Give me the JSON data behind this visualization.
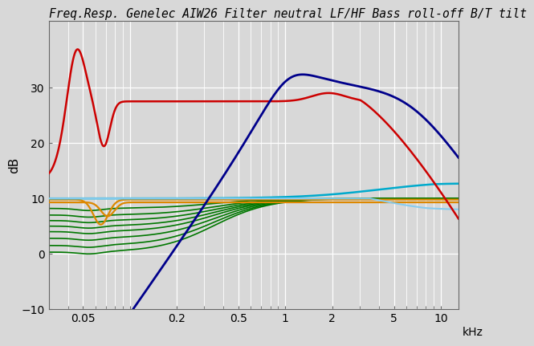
{
  "title": "Freq.Resp. Genelec AIW26 Filter neutral LF/HF Bass roll-off B/T tilt",
  "ylabel": "dB",
  "xlabel": "kHz",
  "ylim": [
    -10,
    42
  ],
  "yticks": [
    -10,
    0,
    10,
    20,
    30
  ],
  "background_color": "#d8d8d8",
  "grid_color": "#ffffff",
  "title_fontsize": 10.5,
  "label_fontsize": 11,
  "tick_fontsize": 10,
  "red_color": "#cc0000",
  "blue_color": "#00008b",
  "cyan_dark_color": "#00aacc",
  "cyan_light_color": "#88ccee",
  "orange_color": "#dd8800",
  "green_color": "#007700"
}
